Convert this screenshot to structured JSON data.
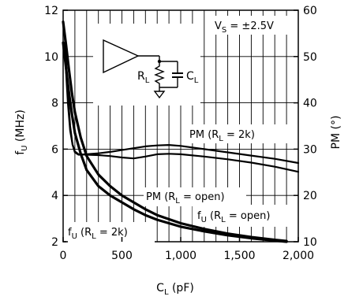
{
  "chart_data": {
    "type": "line",
    "xlabel": {
      "main": "C",
      "sub": "L",
      "unit": " (pF)"
    },
    "ylabel_left": {
      "main": "f",
      "sub": "U",
      "unit": " (MHz)"
    },
    "ylabel_right": "PM (°)",
    "xlim": [
      0,
      2000
    ],
    "ylim_left": [
      2,
      12
    ],
    "ylim_right": [
      10,
      60
    ],
    "x_ticks": [
      "0",
      "500",
      "1,000",
      "1,500",
      "2,000"
    ],
    "y_left_ticks": [
      "2",
      "4",
      "6",
      "8",
      "10",
      "12"
    ],
    "y_right_ticks": [
      "10",
      "20",
      "30",
      "40",
      "50",
      "60"
    ],
    "grid": true,
    "annotations": {
      "supply": "V",
      "supply_sub": "S",
      "supply_value": " = ±2.5V",
      "pm_2k": {
        "pre": "PM (R",
        "sub": "L",
        "post": " = 2k)"
      },
      "pm_open": {
        "pre": "PM (R",
        "sub": "L",
        "post": " = open)"
      },
      "fu_open": {
        "pre": "f",
        "sub1": "U",
        "mid": " (R",
        "sub2": "L",
        "post": " = open)"
      },
      "fu_2k": {
        "pre": "f",
        "sub1": "U",
        "mid": " (R",
        "sub2": "L",
        "post": " = 2k)"
      }
    },
    "inset": {
      "rl_label": "R",
      "rl_sub": "L",
      "cl_label": "C",
      "cl_sub": "L"
    },
    "series": [
      {
        "axis": "left",
        "x": [
          0,
          25,
          50,
          75,
          100,
          150,
          200,
          300,
          400,
          500,
          600,
          700,
          800,
          1000,
          1200,
          1400,
          1600,
          1800,
          1900
        ],
        "y": [
          11.5,
          10.5,
          9.4,
          8.4,
          7.6,
          6.5,
          5.7,
          4.9,
          4.4,
          4.0,
          3.7,
          3.4,
          3.15,
          2.8,
          2.55,
          2.35,
          2.2,
          2.08,
          2.03
        ]
      },
      {
        "axis": "left",
        "x": [
          0,
          25,
          50,
          75,
          100,
          150,
          200,
          300,
          400,
          500,
          600,
          700,
          800,
          1000,
          1200,
          1400,
          1600,
          1800,
          1900
        ],
        "y": [
          10.6,
          9.5,
          8.4,
          7.5,
          6.7,
          5.8,
          5.1,
          4.4,
          4.0,
          3.7,
          3.4,
          3.15,
          2.95,
          2.65,
          2.45,
          2.28,
          2.15,
          2.05,
          2.0
        ]
      },
      {
        "axis": "right",
        "x": [
          15,
          40,
          60,
          80,
          100,
          130,
          200,
          300,
          400,
          500,
          600,
          700,
          800,
          900,
          1000,
          1200,
          1400,
          1600,
          1800,
          2000
        ],
        "y": [
          54,
          42,
          35,
          31,
          29.3,
          28.8,
          28.9,
          29.1,
          29.4,
          29.8,
          30.2,
          30.6,
          30.8,
          30.9,
          30.7,
          30.0,
          29.3,
          28.6,
          27.9,
          27.0
        ]
      },
      {
        "axis": "right",
        "x": [
          15,
          40,
          60,
          80,
          100,
          130,
          200,
          300,
          400,
          500,
          600,
          700,
          800,
          900,
          1000,
          1200,
          1400,
          1600,
          1800,
          2000
        ],
        "y": [
          51,
          40,
          34,
          31,
          29.5,
          28.9,
          28.8,
          28.7,
          28.5,
          28.2,
          28.0,
          28.4,
          28.9,
          29.0,
          28.9,
          28.4,
          27.8,
          27.1,
          26.2,
          25.1
        ]
      }
    ]
  }
}
